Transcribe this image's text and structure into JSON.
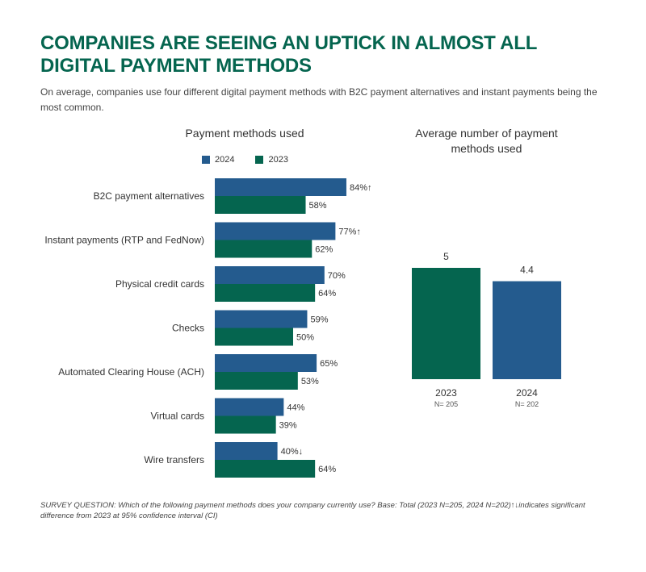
{
  "title": "COMPANIES ARE SEEING AN UPTICK IN ALMOST ALL DIGITAL PAYMENT METHODS",
  "subtitle": "On average, companies use four different digital payment methods with B2C payment alternatives and instant payments being the most common.",
  "footnote": "SURVEY QUESTION: Which of the following payment methods does your company currently use? Base: Total (2023 N=205, 2024 N=202)↑↓indicates significant difference from 2023 at 95% confidence interval (CI)",
  "colors": {
    "y2024": "#245b8e",
    "y2023": "#05654f",
    "title": "#05654f"
  },
  "chart_data": [
    {
      "type": "bar",
      "orientation": "horizontal",
      "title": "Payment methods used",
      "categories": [
        "B2C payment alternatives",
        "Instant payments (RTP and FedNow)",
        "Physical credit cards",
        "Checks",
        "Automated Clearing House (ACH)",
        "Virtual cards",
        "Wire transfers"
      ],
      "series": [
        {
          "name": "2024",
          "color": "#245b8e",
          "values": [
            84,
            77,
            70,
            59,
            65,
            44,
            40
          ],
          "labels": [
            "84%↑",
            "77%↑",
            "70%",
            "59%",
            "65%",
            "44%",
            "40%↓"
          ]
        },
        {
          "name": "2023",
          "color": "#05654f",
          "values": [
            58,
            62,
            64,
            50,
            53,
            39,
            64
          ],
          "labels": [
            "58%",
            "62%",
            "64%",
            "50%",
            "53%",
            "39%",
            "64%"
          ]
        }
      ],
      "unit": "%",
      "xlim": [
        0,
        100
      ],
      "legend": "top",
      "grid": false
    },
    {
      "type": "bar",
      "orientation": "vertical",
      "title": "Average number of payment methods used",
      "categories": [
        "2023",
        "2024"
      ],
      "sublabels": [
        "N= 205",
        "N= 202"
      ],
      "values": [
        5,
        4.4
      ],
      "value_labels": [
        "5",
        "4.4"
      ],
      "colors": [
        "#05654f",
        "#245b8e"
      ],
      "ylim": [
        0,
        5
      ],
      "grid": false
    }
  ]
}
